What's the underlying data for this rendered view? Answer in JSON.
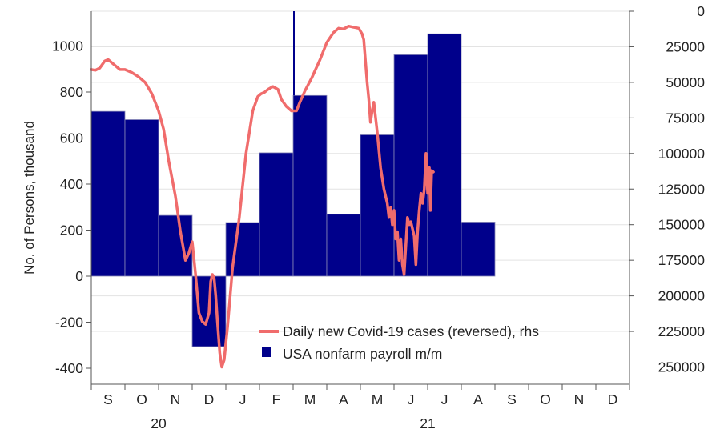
{
  "chart_data": {
    "type": "bar+line",
    "ylabel_left": "No. of Persons, thousand",
    "left_axis": {
      "ylim": [
        -450,
        1150
      ],
      "ticks": [
        -400,
        -200,
        0,
        200,
        400,
        600,
        800,
        1000
      ]
    },
    "right_axis": {
      "reversed": true,
      "ylim": [
        0,
        260000
      ],
      "ticks": [
        0,
        25000,
        50000,
        75000,
        100000,
        125000,
        150000,
        175000,
        200000,
        225000,
        250000
      ],
      "tick_labels": [
        "0",
        "25000",
        "50000",
        "75000",
        "100000",
        "125000",
        "150000",
        "175000",
        "200000",
        "225000",
        "250000"
      ]
    },
    "x_months": [
      "S",
      "O",
      "N",
      "D",
      "J",
      "F",
      "M",
      "A",
      "M",
      "J",
      "J",
      "A",
      "S",
      "O",
      "N",
      "D"
    ],
    "x_years": [
      {
        "label": "20",
        "month_index": 2
      },
      {
        "label": "21",
        "month_index": 10
      }
    ],
    "grid": true,
    "legend_position": "bottom-center",
    "series": [
      {
        "name": "Daily new Covid-19 cases (reversed), rhs",
        "kind": "line",
        "axis": "right",
        "color": "#f06c6c",
        "points": [
          [
            0.0,
            41000
          ],
          [
            0.12,
            41500
          ],
          [
            0.25,
            40000
          ],
          [
            0.4,
            35000
          ],
          [
            0.5,
            34000
          ],
          [
            0.7,
            38000
          ],
          [
            0.85,
            41000
          ],
          [
            1.0,
            41000
          ],
          [
            1.2,
            43000
          ],
          [
            1.4,
            46000
          ],
          [
            1.6,
            50000
          ],
          [
            1.8,
            58000
          ],
          [
            2.0,
            70000
          ],
          [
            2.15,
            83000
          ],
          [
            2.3,
            105000
          ],
          [
            2.5,
            130000
          ],
          [
            2.65,
            155000
          ],
          [
            2.8,
            175000
          ],
          [
            2.9,
            170000
          ],
          [
            3.0,
            162000
          ],
          [
            3.1,
            185000
          ],
          [
            3.2,
            212000
          ],
          [
            3.3,
            218000
          ],
          [
            3.4,
            220000
          ],
          [
            3.5,
            212000
          ],
          [
            3.55,
            190000
          ],
          [
            3.6,
            185000
          ],
          [
            3.65,
            187000
          ],
          [
            3.7,
            200000
          ],
          [
            3.75,
            218000
          ],
          [
            3.82,
            240000
          ],
          [
            3.88,
            250000
          ],
          [
            3.95,
            245000
          ],
          [
            4.05,
            222000
          ],
          [
            4.2,
            180000
          ],
          [
            4.4,
            145000
          ],
          [
            4.6,
            100000
          ],
          [
            4.8,
            70000
          ],
          [
            4.95,
            60000
          ],
          [
            5.05,
            58000
          ],
          [
            5.15,
            57000
          ],
          [
            5.25,
            55000
          ],
          [
            5.4,
            53000
          ],
          [
            5.55,
            55000
          ],
          [
            5.65,
            62000
          ],
          [
            5.8,
            67000
          ],
          [
            5.95,
            70000
          ],
          [
            6.1,
            70000
          ],
          [
            6.2,
            64000
          ],
          [
            6.35,
            56000
          ],
          [
            6.55,
            47000
          ],
          [
            6.8,
            34000
          ],
          [
            7.0,
            22000
          ],
          [
            7.2,
            15000
          ],
          [
            7.35,
            12000
          ],
          [
            7.5,
            12500
          ],
          [
            7.65,
            10500
          ],
          [
            7.75,
            11000
          ],
          [
            7.85,
            11500
          ],
          [
            7.95,
            12000
          ],
          [
            8.0,
            14000
          ],
          [
            8.05,
            16000
          ],
          [
            8.1,
            20000
          ],
          [
            8.15,
            35000
          ],
          [
            8.2,
            50000
          ],
          [
            8.25,
            62000
          ],
          [
            8.3,
            78000
          ],
          [
            8.35,
            70000
          ],
          [
            8.4,
            64000
          ],
          [
            8.5,
            85000
          ],
          [
            8.6,
            110000
          ],
          [
            8.7,
            125000
          ],
          [
            8.8,
            135000
          ],
          [
            8.85,
            145000
          ],
          [
            8.9,
            138000
          ],
          [
            8.95,
            150000
          ],
          [
            9.0,
            140000
          ],
          [
            9.05,
            160000
          ],
          [
            9.1,
            155000
          ],
          [
            9.15,
            175000
          ],
          [
            9.2,
            160000
          ],
          [
            9.25,
            178000
          ],
          [
            9.3,
            185000
          ],
          [
            9.35,
            165000
          ],
          [
            9.4,
            145000
          ],
          [
            9.45,
            150000
          ],
          [
            9.5,
            148000
          ],
          [
            9.55,
            153000
          ],
          [
            9.6,
            158000
          ],
          [
            9.65,
            178000
          ],
          [
            9.7,
            155000
          ],
          [
            9.75,
            140000
          ],
          [
            9.8,
            128000
          ],
          [
            9.85,
            135000
          ],
          [
            9.9,
            125000
          ],
          [
            9.95,
            100000
          ],
          [
            10.0,
            128000
          ],
          [
            10.05,
            110000
          ],
          [
            10.08,
            140000
          ],
          [
            10.12,
            112000
          ],
          [
            10.17,
            113000
          ]
        ]
      },
      {
        "name": "USA nonfarm payroll m/m",
        "kind": "bar",
        "axis": "left",
        "color": "#00008b",
        "bars": [
          {
            "month": "Sep 2020",
            "value": 716
          },
          {
            "month": "Oct 2020",
            "value": 680
          },
          {
            "month": "Nov 2020",
            "value": 264
          },
          {
            "month": "Dec 2020",
            "value": -306
          },
          {
            "month": "Jan 2021",
            "value": 233
          },
          {
            "month": "Feb 2021",
            "value": 536
          },
          {
            "month": "Mar 2021",
            "value": 785
          },
          {
            "month": "Apr 2021",
            "value": 269
          },
          {
            "month": "May 2021",
            "value": 614
          },
          {
            "month": "Jun 2021",
            "value": 962
          },
          {
            "month": "Jul 2021",
            "value": 1053
          },
          {
            "month": "Aug 2021",
            "value": 235
          }
        ]
      }
    ]
  }
}
